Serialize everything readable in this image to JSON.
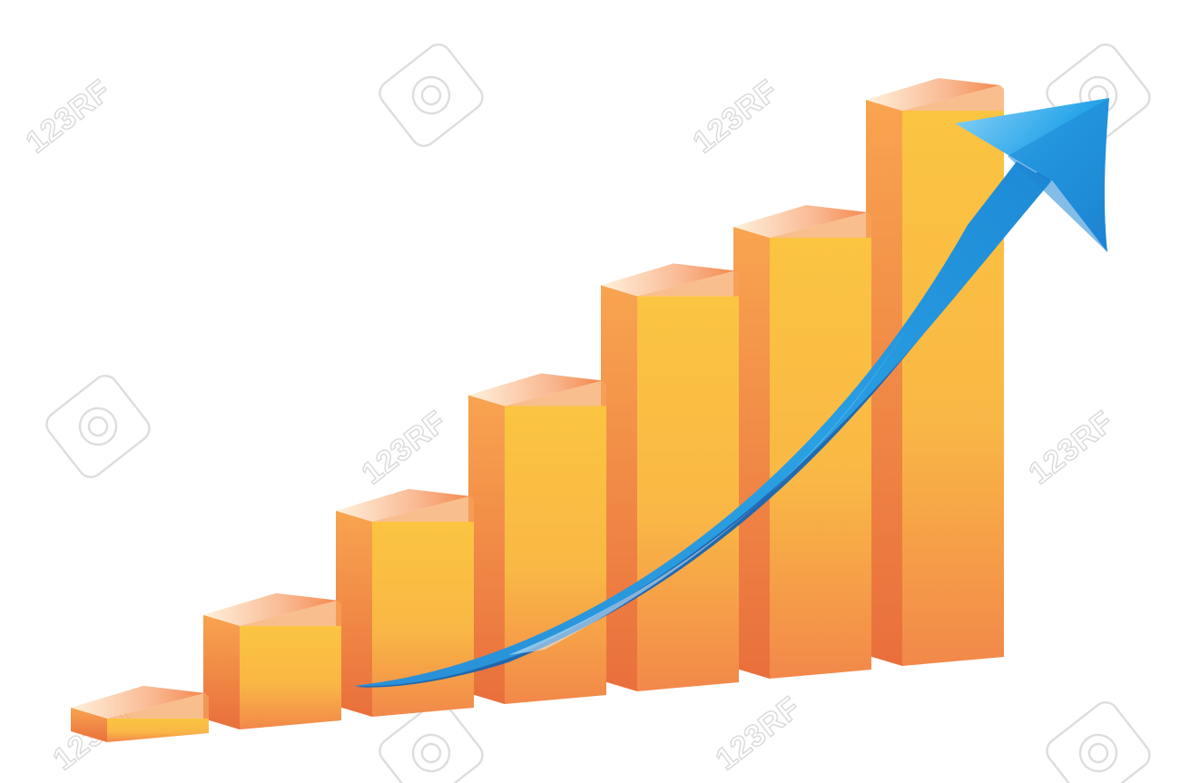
{
  "illustration": {
    "subject": "3d-bar-graph-with-rising-arrow",
    "bar_count": 7,
    "bar_relative_heights": [
      0.07,
      0.21,
      0.37,
      0.55,
      0.72,
      0.8,
      1.0
    ],
    "colors": {
      "bar_front_light": "#fbc441",
      "bar_front_dark": "#f2884a",
      "bar_side_light": "#f8a450",
      "bar_side_dark": "#e96f3c",
      "bar_top_light": "#fff1dc",
      "bar_top_dark": "#f4894e",
      "arrow_light": "#8fd3f7",
      "arrow_mid": "#2aa0e3",
      "arrow_dark": "#1566b6"
    },
    "arrow_icon": "trend-up-arrow-icon"
  },
  "watermark": {
    "text": "123RF",
    "icon": "camera-icon",
    "color": "#dcdcdc"
  }
}
